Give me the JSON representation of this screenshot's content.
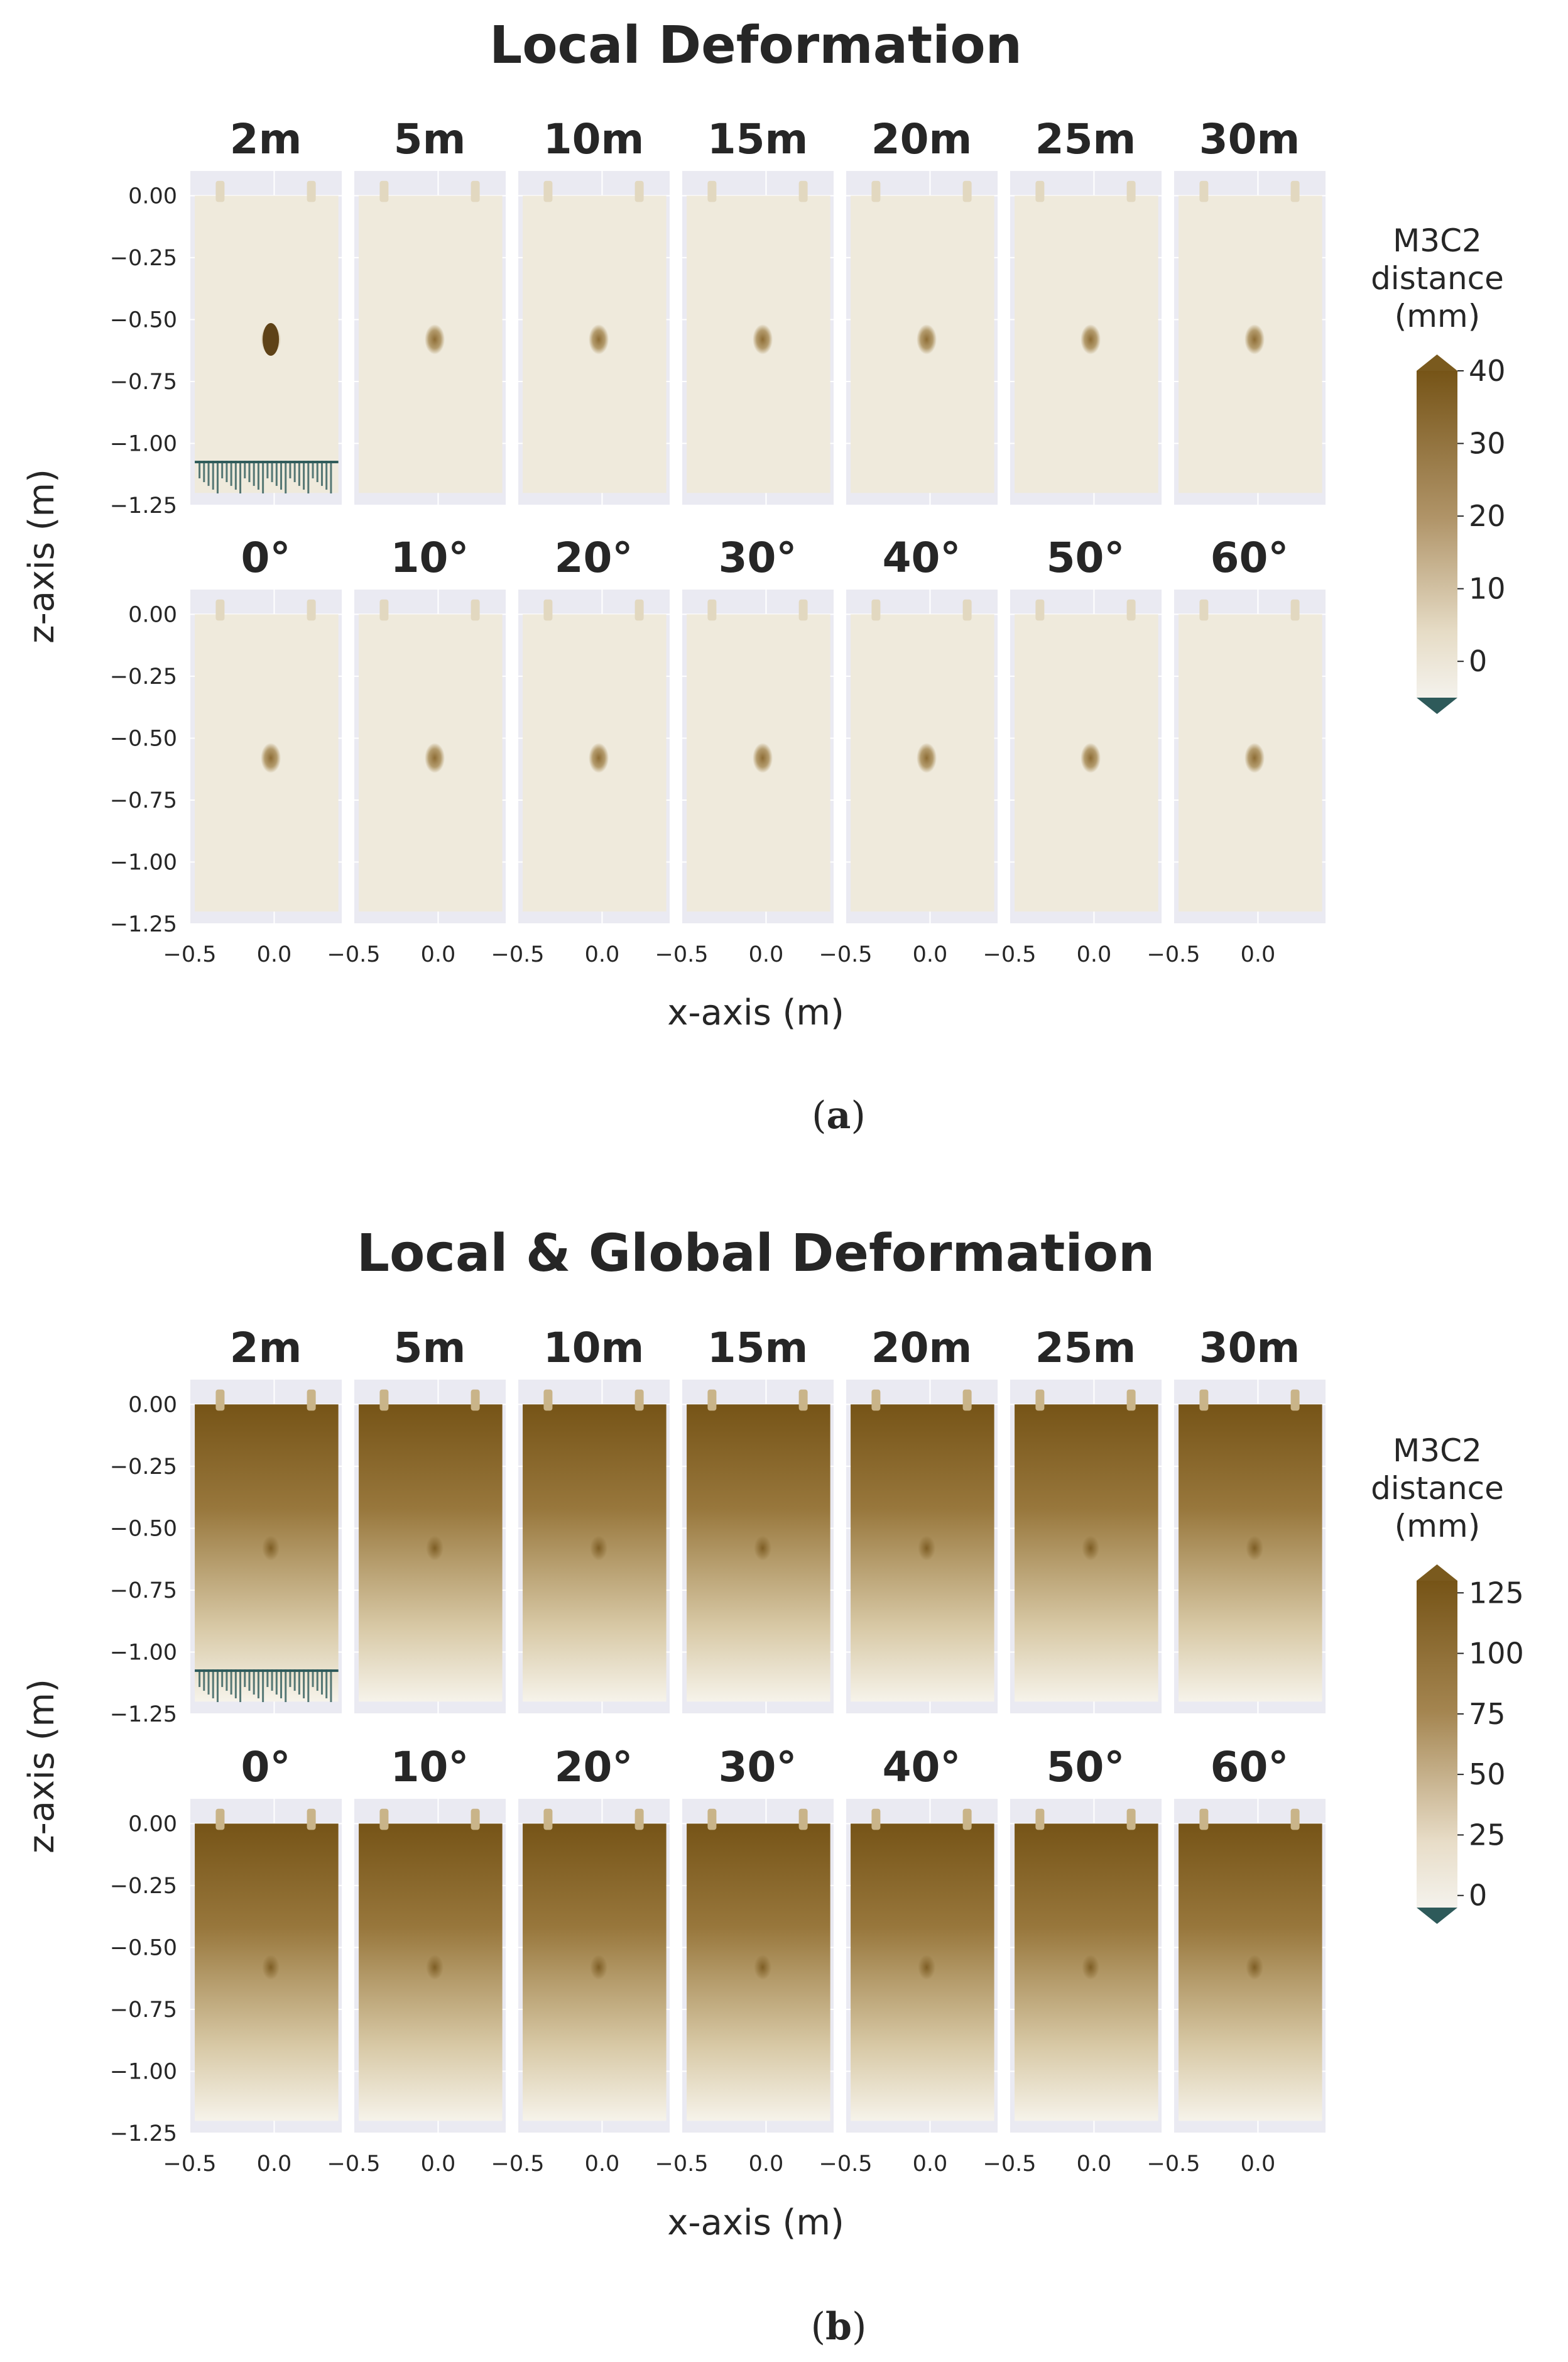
{
  "chart_data": [
    {
      "type": "heatmap",
      "title": "Local Deformation",
      "caption_letter": "a",
      "rows": [
        [
          "2m",
          "5m",
          "10m",
          "15m",
          "20m",
          "25m",
          "30m"
        ],
        [
          "0°",
          "10°",
          "20°",
          "30°",
          "40°",
          "50°",
          "60°"
        ]
      ],
      "xlabel": "x-axis (m)",
      "ylabel": "z-axis (m)",
      "x_ticks": [
        "−0.5",
        "0.0"
      ],
      "x_tick_values": [
        -0.5,
        0.0
      ],
      "xlim": [
        -0.5,
        0.4
      ],
      "y_ticks": [
        "0.00",
        "−0.25",
        "−0.50",
        "−0.75",
        "−1.00",
        "−1.25"
      ],
      "y_tick_values": [
        0.0,
        -0.25,
        -0.5,
        -0.75,
        -1.0,
        -1.25
      ],
      "ylim": [
        -1.25,
        0.1
      ],
      "colorbar": {
        "title": [
          "M3C2",
          "distance",
          "(mm)"
        ],
        "ticks": [
          "40",
          "30",
          "20",
          "10",
          "0"
        ],
        "tick_values": [
          40,
          30,
          20,
          10,
          0
        ],
        "range": [
          -5,
          40
        ],
        "extend": "both"
      }
    },
    {
      "type": "heatmap",
      "title": "Local & Global Deformation",
      "caption_letter": "b",
      "rows": [
        [
          "2m",
          "5m",
          "10m",
          "15m",
          "20m",
          "25m",
          "30m"
        ],
        [
          "0°",
          "10°",
          "20°",
          "30°",
          "40°",
          "50°",
          "60°"
        ]
      ],
      "xlabel": "x-axis (m)",
      "ylabel": "z-axis (m)",
      "x_ticks": [
        "−0.5",
        "0.0"
      ],
      "x_tick_values": [
        -0.5,
        0.0
      ],
      "xlim": [
        -0.5,
        0.4
      ],
      "y_ticks": [
        "0.00",
        "−0.25",
        "−0.50",
        "−0.75",
        "−1.00",
        "−1.25"
      ],
      "y_tick_values": [
        0.0,
        -0.25,
        -0.5,
        -0.75,
        -1.0,
        -1.25
      ],
      "ylim": [
        -1.25,
        0.1
      ],
      "colorbar": {
        "title": [
          "M3C2",
          "distance",
          "(mm)"
        ],
        "ticks": [
          "125",
          "100",
          "75",
          "50",
          "25",
          "0"
        ],
        "tick_values": [
          125,
          100,
          75,
          50,
          25,
          0
        ],
        "range": [
          -5,
          130
        ],
        "extend": "both"
      }
    }
  ],
  "colors": {
    "axes_bg": "#eaeaf2",
    "point_light": "#f0ece0",
    "point_dark": "#7a5a1e",
    "under_color": "#2e5a5a",
    "local_fill": "#efeadc",
    "local_spot": "#9f8050"
  }
}
